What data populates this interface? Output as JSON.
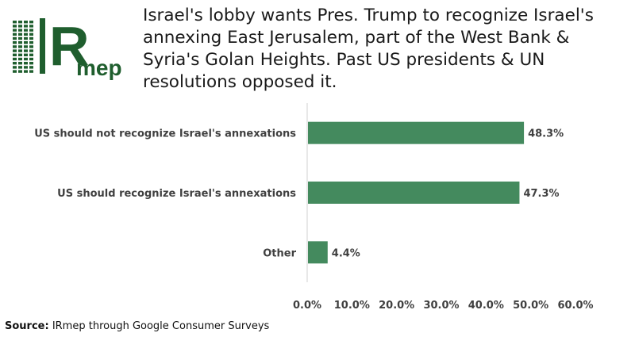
{
  "headline": "Israel's lobby wants Pres. Trump to recognize Israel's annexing East Jerusalem, part of the West Bank & Syria's Golan Heights. Past US presidents & UN resolutions opposed it.",
  "logo": {
    "letter": "R",
    "text": "mep",
    "color": "#1f5e2e"
  },
  "source": {
    "label": "Source:",
    "text": " IRmep through Google Consumer Surveys"
  },
  "chart_data": {
    "type": "bar",
    "orientation": "horizontal",
    "categories": [
      "US should not recognize Israel's annexations",
      "US should recognize Israel's annexations",
      "Other"
    ],
    "values": [
      48.3,
      47.3,
      4.4
    ],
    "value_labels": [
      "48.3%",
      "47.3%",
      "4.4%"
    ],
    "xlim": [
      0,
      60
    ],
    "xticks": [
      "0.0%",
      "10.0%",
      "20.0%",
      "30.0%",
      "40.0%",
      "50.0%",
      "60.0%"
    ],
    "grid": false,
    "legend": "none",
    "bar_color": "#448a5e"
  }
}
